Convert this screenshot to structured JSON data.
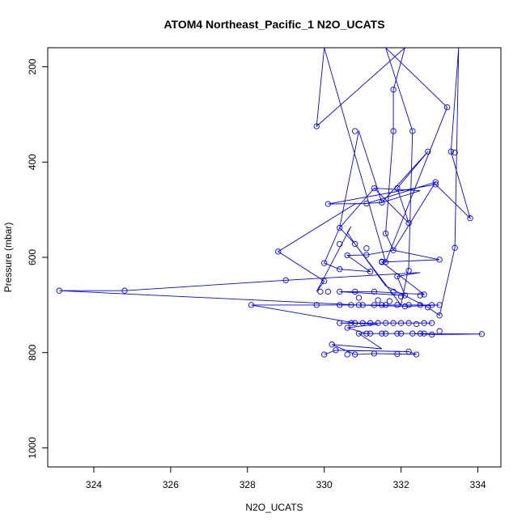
{
  "chart_data": {
    "type": "scatter",
    "title": "ATOM4 Northeast_Pacific_1 N2O_UCATS",
    "xlabel": "N2O_UCATS",
    "ylabel": "Pressure (mbar)",
    "xlim": [
      322.8,
      334.6
    ],
    "ylim": [
      1040,
      160
    ],
    "y_reversed": true,
    "x_ticks": [
      324,
      326,
      328,
      330,
      332,
      334
    ],
    "y_ticks": [
      200,
      400,
      600,
      800,
      1000
    ],
    "grid": false,
    "legend": "none",
    "color": "#0000ff",
    "series": [
      {
        "points": [
          [
            330.8,
            804
          ],
          [
            331.3,
            802
          ],
          [
            331.9,
            803
          ],
          [
            332.4,
            804
          ],
          [
            332.2,
            798
          ],
          [
            330.6,
            804
          ],
          [
            330.3,
            795
          ],
          [
            330.0,
            804
          ],
          [
            330.9,
            760
          ],
          [
            331.2,
            760
          ],
          [
            331.6,
            760
          ],
          [
            331.9,
            760
          ],
          [
            332.3,
            760
          ],
          [
            332.5,
            760
          ],
          [
            332.8,
            762
          ],
          [
            334.1,
            761
          ],
          [
            333.0,
            755
          ],
          [
            332.6,
            760
          ],
          [
            332.0,
            760
          ],
          [
            331.5,
            760
          ],
          [
            331.1,
            760
          ],
          [
            330.6,
            748
          ],
          [
            330.2,
            783
          ],
          [
            330.4,
            738
          ],
          [
            330.7,
            738
          ],
          [
            331.0,
            738
          ],
          [
            331.4,
            738
          ],
          [
            331.8,
            738
          ],
          [
            332.2,
            738
          ],
          [
            332.6,
            738
          ],
          [
            332.8,
            738
          ],
          [
            332.4,
            740
          ],
          [
            332.0,
            738
          ],
          [
            331.6,
            738
          ],
          [
            331.2,
            738
          ],
          [
            330.8,
            738
          ],
          [
            328.1,
            700
          ],
          [
            329.8,
            700
          ],
          [
            330.4,
            700
          ],
          [
            330.7,
            700
          ],
          [
            331.0,
            700
          ],
          [
            331.3,
            700
          ],
          [
            331.6,
            700
          ],
          [
            331.9,
            700
          ],
          [
            332.2,
            700
          ],
          [
            332.5,
            700
          ],
          [
            332.8,
            700
          ],
          [
            333.0,
            700
          ],
          [
            332.7,
            705
          ],
          [
            332.1,
            703
          ],
          [
            331.5,
            700
          ],
          [
            330.9,
            700
          ],
          [
            323.1,
            670
          ],
          [
            324.8,
            670
          ],
          [
            329.0,
            648
          ],
          [
            328.8,
            588
          ],
          [
            329.9,
            672
          ],
          [
            330.1,
            672
          ],
          [
            330.4,
            672
          ],
          [
            330.8,
            672
          ],
          [
            331.3,
            672
          ],
          [
            331.8,
            672
          ],
          [
            332.1,
            680
          ],
          [
            332.6,
            678
          ],
          [
            333.0,
            722
          ],
          [
            333.0,
            605
          ],
          [
            333.4,
            580
          ],
          [
            333.8,
            518
          ],
          [
            332.9,
            447
          ],
          [
            333.3,
            378
          ],
          [
            332.7,
            378
          ],
          [
            333.2,
            285
          ],
          [
            331.8,
            248
          ],
          [
            332.3,
            335
          ],
          [
            331.8,
            335
          ],
          [
            330.8,
            335
          ],
          [
            329.8,
            325
          ],
          [
            331.1,
            487
          ],
          [
            330.1,
            488
          ],
          [
            330.4,
            538
          ],
          [
            330.0,
            612
          ],
          [
            330.4,
            572
          ],
          [
            330.8,
            572
          ],
          [
            331.1,
            581
          ],
          [
            331.5,
            610
          ],
          [
            331.6,
            610
          ],
          [
            331.2,
            630
          ],
          [
            331.8,
            585
          ],
          [
            332.2,
            528
          ],
          [
            331.9,
            455
          ],
          [
            331.3,
            455
          ],
          [
            331.5,
            485
          ],
          [
            331.6,
            550
          ],
          [
            330.9,
            685
          ],
          [
            331.4,
            690
          ],
          [
            331.7,
            692
          ],
          [
            332.0,
            682
          ],
          [
            330.4,
            625
          ],
          [
            331.9,
            640
          ],
          [
            332.2,
            628
          ],
          [
            332.5,
            680
          ],
          [
            330.6,
            596
          ],
          [
            331.1,
            595
          ],
          [
            331.5,
            609
          ],
          [
            330.0,
            650
          ],
          [
            332.9,
            442
          ],
          [
            333.4,
            380
          ]
        ],
        "path": [
          [
            330.0,
            804
          ],
          [
            330.3,
            795
          ],
          [
            332.2,
            798
          ],
          [
            332.4,
            804
          ],
          [
            331.9,
            803
          ],
          [
            331.3,
            802
          ],
          [
            330.8,
            804
          ],
          [
            330.2,
            783
          ],
          [
            331.5,
            792
          ],
          [
            330.9,
            760
          ],
          [
            331.6,
            760
          ],
          [
            332.3,
            760
          ],
          [
            332.8,
            762
          ],
          [
            334.1,
            761
          ],
          [
            332.6,
            760
          ],
          [
            332.0,
            760
          ],
          [
            331.1,
            760
          ],
          [
            330.6,
            748
          ],
          [
            331.4,
            740
          ],
          [
            330.4,
            738
          ],
          [
            331.0,
            738
          ],
          [
            331.8,
            738
          ],
          [
            332.6,
            738
          ],
          [
            332.8,
            738
          ],
          [
            332.0,
            738
          ],
          [
            331.2,
            738
          ],
          [
            330.8,
            738
          ],
          [
            328.1,
            700
          ],
          [
            330.4,
            700
          ],
          [
            331.3,
            700
          ],
          [
            332.2,
            700
          ],
          [
            333.0,
            700
          ],
          [
            332.1,
            703
          ],
          [
            330.9,
            700
          ],
          [
            323.1,
            670
          ],
          [
            324.8,
            670
          ],
          [
            329.0,
            648
          ],
          [
            332.5,
            632
          ],
          [
            331.9,
            640
          ],
          [
            332.1,
            680
          ],
          [
            330.4,
            672
          ],
          [
            331.3,
            672
          ],
          [
            332.6,
            678
          ],
          [
            331.5,
            610
          ],
          [
            333.0,
            605
          ],
          [
            331.8,
            585
          ],
          [
            332.9,
            442
          ],
          [
            331.1,
            487
          ],
          [
            330.1,
            488
          ],
          [
            332.9,
            447
          ],
          [
            333.8,
            518
          ],
          [
            333.3,
            378
          ],
          [
            333.5,
            160
          ],
          [
            333.4,
            580
          ],
          [
            333.0,
            722
          ],
          [
            332.7,
            705
          ],
          [
            331.6,
            660
          ],
          [
            330.8,
            572
          ],
          [
            330.4,
            538
          ],
          [
            331.3,
            455
          ],
          [
            332.2,
            528
          ],
          [
            331.9,
            455
          ],
          [
            332.7,
            378
          ],
          [
            331.5,
            485
          ],
          [
            330.9,
            335
          ],
          [
            330.4,
            538
          ],
          [
            330.0,
            612
          ],
          [
            330.4,
            625
          ],
          [
            331.2,
            630
          ],
          [
            330.6,
            596
          ],
          [
            331.1,
            595
          ],
          [
            331.8,
            585
          ],
          [
            331.6,
            550
          ],
          [
            331.8,
            335
          ],
          [
            331.8,
            248
          ],
          [
            332.1,
            160
          ],
          [
            329.8,
            325
          ],
          [
            330.0,
            160
          ],
          [
            331.6,
            610
          ],
          [
            333.2,
            285
          ],
          [
            331.6,
            160
          ],
          [
            332.3,
            335
          ],
          [
            332.2,
            620
          ],
          [
            332.0,
            700
          ],
          [
            330.8,
            572
          ],
          [
            330.6,
            548
          ],
          [
            330.7,
            535
          ],
          [
            329.8,
            672
          ],
          [
            330.0,
            650
          ],
          [
            328.8,
            588
          ],
          [
            330.8,
            488
          ],
          [
            331.5,
            485
          ],
          [
            332.5,
            460
          ],
          [
            331.3,
            455
          ]
        ]
      }
    ]
  }
}
